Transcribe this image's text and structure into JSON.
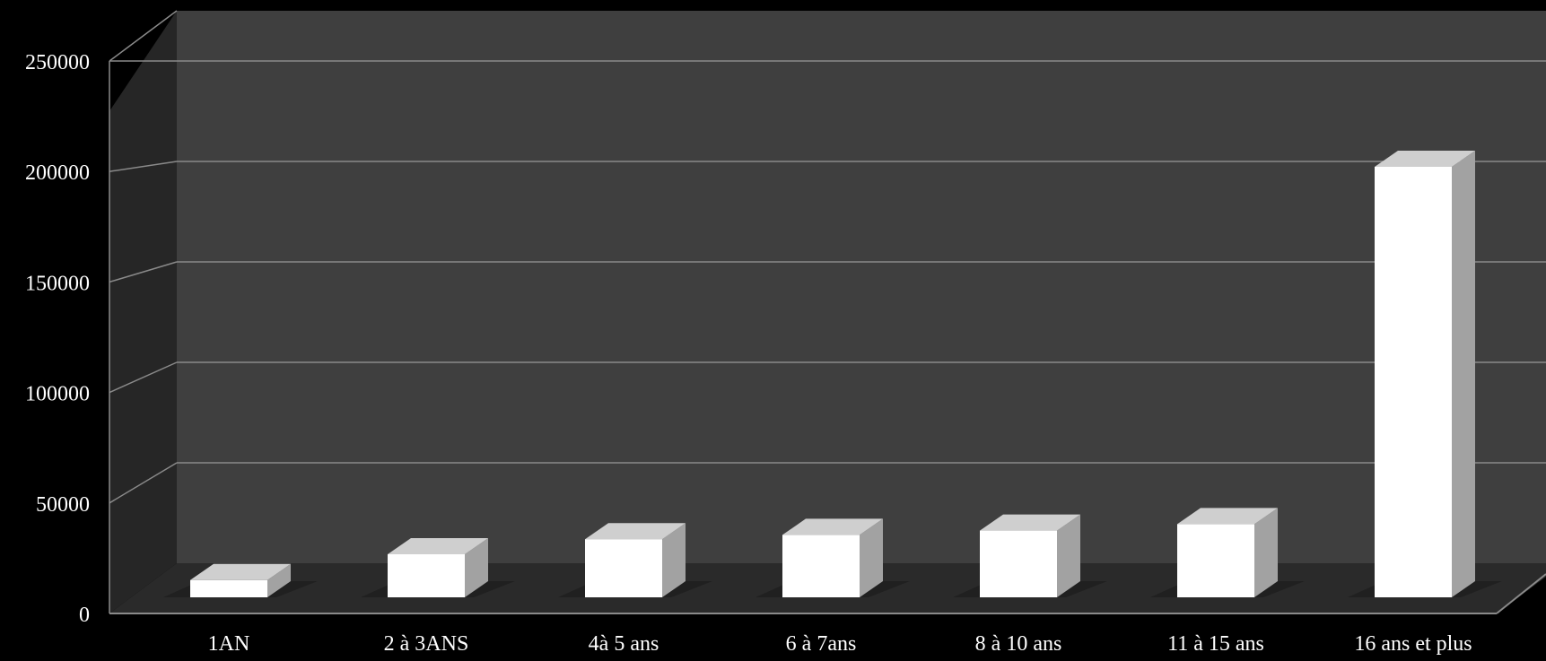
{
  "chart_data": {
    "type": "bar",
    "title": "",
    "xlabel": "",
    "ylabel": "",
    "categories": [
      "1AN",
      "2 à 3ANS",
      "4à 5 ans",
      "6 à 7ans",
      "8 à 10 ans",
      "11 à 15 ans",
      "16 ans et plus"
    ],
    "values": [
      8000,
      20000,
      27000,
      29000,
      31000,
      34000,
      200000
    ],
    "ylim": [
      0,
      250000
    ],
    "yticks": [
      "0",
      "50000",
      "100000",
      "150000",
      "200000",
      "250000"
    ],
    "grid": true,
    "legend": "none",
    "style": "3d-column"
  },
  "colors": {
    "background": "#000000",
    "back_wall": "#3f3f3f",
    "side_wall": "#262626",
    "floor": "#2a2a2a",
    "gridline": "#8a8a8a",
    "bar_front": "#ffffff",
    "bar_top": "#cfcfcf",
    "bar_side": "#a2a2a2",
    "text": "#ffffff"
  }
}
